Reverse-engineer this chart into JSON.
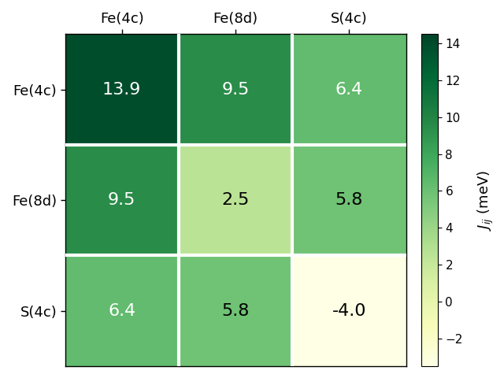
{
  "labels": [
    "Fe(4c)",
    "Fe(8d)",
    "S(4c)"
  ],
  "matrix": [
    [
      13.9,
      9.5,
      6.4
    ],
    [
      9.5,
      2.5,
      5.8
    ],
    [
      6.4,
      5.8,
      -4.0
    ]
  ],
  "vmin": -3.5,
  "vmax": 14.5,
  "colormap": "YlGn",
  "colorbar_label": "$J_{ij}$ (meV)",
  "figsize": [
    6.4,
    4.8
  ],
  "dpi": 100,
  "cell_fontsize": 16,
  "label_fontsize": 13,
  "cbar_fontsize": 13,
  "linewidth": 3
}
